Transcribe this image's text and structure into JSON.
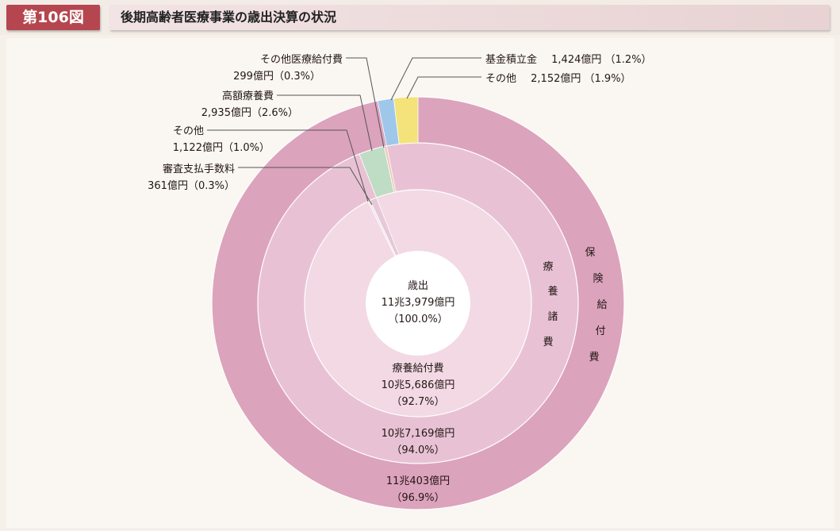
{
  "header": {
    "figure_number": "第106図",
    "title": "後期高齢者医療事業の歳出決算の状況"
  },
  "chart_data": {
    "type": "pie",
    "title": "後期高齢者医療事業の歳出決算の状況",
    "center": {
      "label": "歳出",
      "amount": "11兆3,979億円",
      "share": "（100.0%）",
      "value_oku_yen": 113979
    },
    "rings": [
      {
        "name": "療養給付費",
        "ring": "inner",
        "amount": "10兆5,686億円",
        "share": "（92.7%）",
        "value_oku_yen": 105686,
        "percent": 92.7
      },
      {
        "name": "療養諸費",
        "ring": "middle",
        "amount": "10兆7,169億円",
        "share": "（94.0%）",
        "value_oku_yen": 107169,
        "percent": 94.0
      },
      {
        "name": "保険給付費",
        "ring": "outer",
        "amount": "11兆403億円",
        "share": "（96.9%）",
        "value_oku_yen": 110403,
        "percent": 96.9
      }
    ],
    "slices": [
      {
        "name": "基金積立金",
        "amount": "1,424億円",
        "share": "（1.2%）",
        "value_oku_yen": 1424,
        "percent": 1.2,
        "color": "#9fc7ea"
      },
      {
        "name": "その他",
        "amount": "2,152億円",
        "share": "（1.9%）",
        "value_oku_yen": 2152,
        "percent": 1.9,
        "color": "#f4e27a"
      },
      {
        "name": "その他医療給付費",
        "amount": "299億円",
        "share": "（0.3%）",
        "value_oku_yen": 299,
        "percent": 0.3,
        "color": "#f0c7b8"
      },
      {
        "name": "高額療養費",
        "amount": "2,935億円",
        "share": "（2.6%）",
        "value_oku_yen": 2935,
        "percent": 2.6,
        "color": "#bfdcc4"
      },
      {
        "name": "その他",
        "amount": "1,122億円",
        "share": "（1.0%）",
        "value_oku_yen": 1122,
        "percent": 1.0,
        "color": "#e6c9d6"
      },
      {
        "name": "審査支払手数料",
        "amount": "361億円",
        "share": "（0.3%）",
        "value_oku_yen": 361,
        "percent": 0.3,
        "color": "#f3e3ec"
      }
    ],
    "ring_labels": {
      "middle_vertical": [
        "療",
        "養",
        "諸",
        "費"
      ],
      "outer_vertical": [
        "保",
        "険",
        "給",
        "付",
        "費"
      ]
    },
    "colors": {
      "outer_ring": "#dca3bd",
      "middle_ring": "#e8c2d4",
      "inner_ring": "#f2d9e4",
      "center": "#ffffff",
      "leader": "#555555"
    }
  }
}
